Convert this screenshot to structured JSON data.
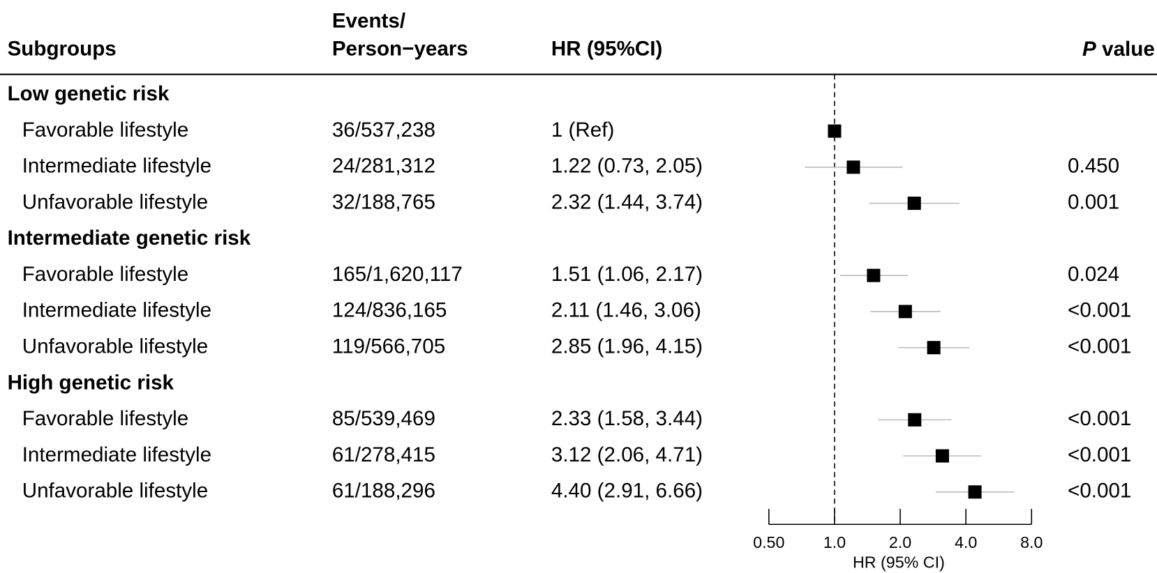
{
  "chart_data": {
    "type": "forest",
    "headers": {
      "subgroups": "Subgroups",
      "events": [
        "Events/",
        "Person−years"
      ],
      "hr": "HR (95%CI)",
      "p": [
        "P",
        "value"
      ]
    },
    "groups": [
      {
        "name": "Low genetic risk",
        "rows": [
          {
            "label": "Favorable lifestyle",
            "events": "36/537,238",
            "hr": 1,
            "value_label": "1 (Ref)"
          },
          {
            "label": "Intermediate lifestyle",
            "events": "24/281,312",
            "hr": 1.22,
            "lower": 0.73,
            "upper": 2.05,
            "value_label": "1.22 (0.73, 2.05)",
            "p": "0.450"
          },
          {
            "label": "Unfavorable lifestyle",
            "events": "32/188,765",
            "hr": 2.32,
            "lower": 1.44,
            "upper": 3.74,
            "value_label": "2.32 (1.44, 3.74)",
            "p": "0.001"
          }
        ]
      },
      {
        "name": "Intermediate genetic risk",
        "rows": [
          {
            "label": "Favorable lifestyle",
            "events": "165/1,620,117",
            "hr": 1.51,
            "lower": 1.06,
            "upper": 2.17,
            "value_label": "1.51 (1.06, 2.17)",
            "p": "0.024"
          },
          {
            "label": "Intermediate lifestyle",
            "events": "124/836,165",
            "hr": 2.11,
            "lower": 1.46,
            "upper": 3.06,
            "value_label": "2.11 (1.46, 3.06)",
            "p": "<0.001"
          },
          {
            "label": "Unfavorable lifestyle",
            "events": "119/566,705",
            "hr": 2.85,
            "lower": 1.96,
            "upper": 4.15,
            "value_label": "2.85 (1.96, 4.15)",
            "p": "<0.001"
          }
        ]
      },
      {
        "name": "High genetic risk",
        "rows": [
          {
            "label": "Favorable lifestyle",
            "events": "85/539,469",
            "hr": 2.33,
            "lower": 1.58,
            "upper": 3.44,
            "value_label": "2.33 (1.58, 3.44)",
            "p": "<0.001"
          },
          {
            "label": "Intermediate lifestyle",
            "events": "61/278,415",
            "hr": 3.12,
            "lower": 2.06,
            "upper": 4.71,
            "value_label": "3.12 (2.06, 4.71)",
            "p": "<0.001"
          },
          {
            "label": "Unfavorable lifestyle",
            "events": "61/188,296",
            "hr": 4.4,
            "lower": 2.91,
            "upper": 6.66,
            "value_label": "4.40 (2.91, 6.66)",
            "p": "<0.001"
          }
        ]
      }
    ],
    "xlabel": "HR (95% CI)",
    "xlim": [
      0.5,
      8
    ],
    "xticks": [
      {
        "value": 0.5,
        "label": "0.50"
      },
      {
        "value": 1,
        "label": "1.0"
      },
      {
        "value": 2,
        "label": "2.0"
      },
      {
        "value": 4,
        "label": "4.0"
      },
      {
        "value": 8,
        "label": "8.0"
      }
    ],
    "log_x": true,
    "refline": 1,
    "color": "#000000",
    "ci_color": "#bbbbbb"
  }
}
